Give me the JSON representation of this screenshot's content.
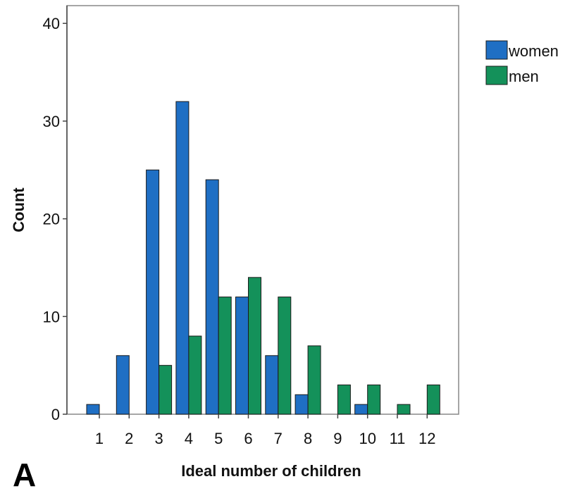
{
  "chart_data": {
    "type": "bar",
    "title": "",
    "panel_label": "A",
    "xlabel": "Ideal number of children",
    "ylabel": "Count",
    "categories": [
      "1",
      "2",
      "3",
      "4",
      "5",
      "6",
      "7",
      "8",
      "9",
      "10",
      "11",
      "12"
    ],
    "ylim": [
      0,
      42
    ],
    "yticks": [
      0,
      10,
      20,
      30,
      40
    ],
    "series": [
      {
        "name": "women",
        "color": "#1f6fc4",
        "values": [
          1,
          6,
          25,
          32,
          24,
          12,
          6,
          2,
          0,
          1,
          0,
          0
        ]
      },
      {
        "name": "men",
        "color": "#14915a",
        "values": [
          0,
          0,
          5,
          8,
          12,
          14,
          12,
          7,
          3,
          3,
          1,
          3
        ]
      }
    ],
    "legend_position": "top-right, outside plot",
    "grid": false
  }
}
